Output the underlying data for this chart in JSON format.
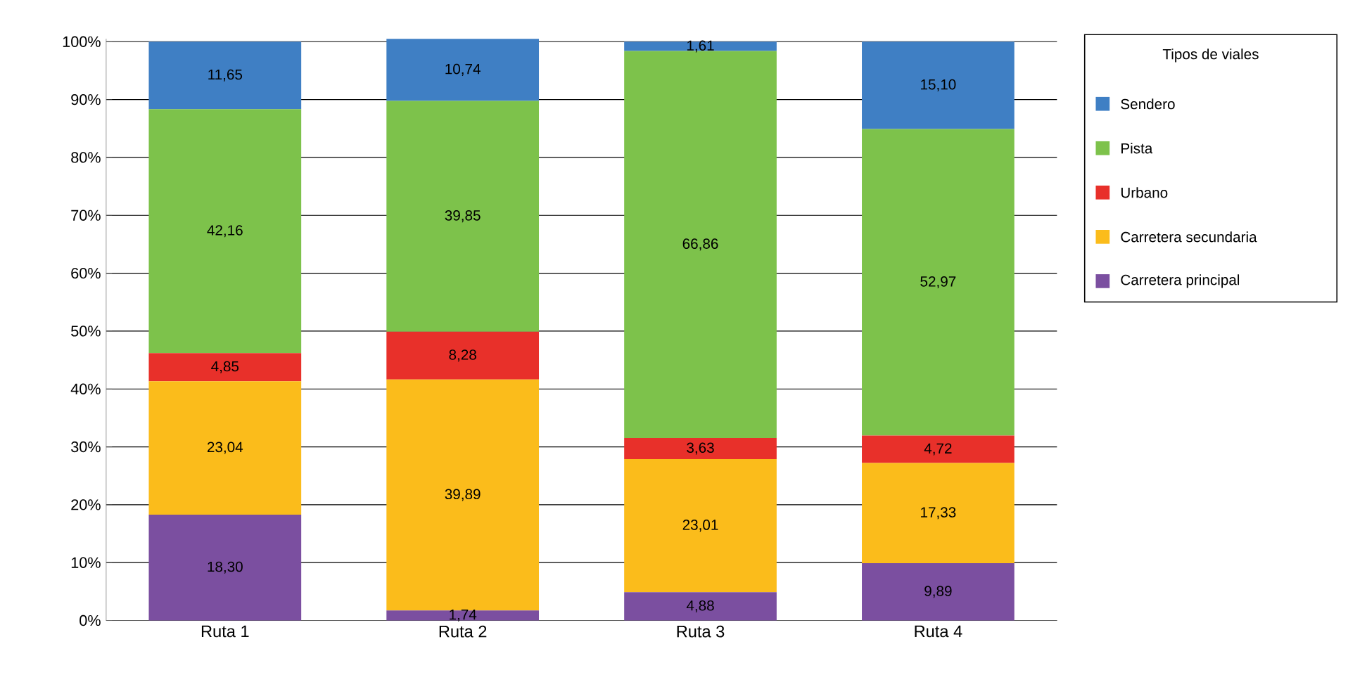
{
  "chart_data": {
    "type": "bar",
    "stacked": true,
    "categories": [
      "Ruta 1",
      "Ruta 2",
      "Ruta 3",
      "Ruta 4"
    ],
    "legend_title": "Tipos de viales",
    "legend": "right",
    "grid": "y",
    "ylim": [
      0,
      100.5
    ],
    "yticks": [
      {
        "value": 0,
        "label": "0%"
      },
      {
        "value": 10,
        "label": "10%"
      },
      {
        "value": 20,
        "label": "20%"
      },
      {
        "value": 30,
        "label": "30%"
      },
      {
        "value": 40,
        "label": "40%"
      },
      {
        "value": 50,
        "label": "50%"
      },
      {
        "value": 60,
        "label": "60%"
      },
      {
        "value": 70,
        "label": "70%"
      },
      {
        "value": 80,
        "label": "80%"
      },
      {
        "value": 90,
        "label": "90%"
      },
      {
        "value": 100,
        "label": "100%"
      }
    ],
    "series": [
      {
        "name": "Carretera principal",
        "color": "#7b4fa0",
        "values": [
          18.3,
          1.74,
          4.88,
          9.89
        ],
        "value_labels": [
          "18,30",
          "1,74",
          "4,88",
          "9,89"
        ]
      },
      {
        "name": "Carretera secundaria",
        "color": "#fbbc1b",
        "values": [
          23.04,
          39.89,
          23.01,
          17.33
        ],
        "value_labels": [
          "23,04",
          "39,89",
          "23,01",
          "17,33"
        ]
      },
      {
        "name": "Urbano",
        "color": "#e8302a",
        "values": [
          4.85,
          8.28,
          3.63,
          4.72
        ],
        "value_labels": [
          "4,85",
          "8,28",
          "3,63",
          "4,72"
        ]
      },
      {
        "name": "Pista",
        "color": "#7dc24b",
        "values": [
          42.16,
          39.85,
          66.86,
          52.97
        ],
        "value_labels": [
          "42,16",
          "39,85",
          "66,86",
          "52,97"
        ]
      },
      {
        "name": "Sendero",
        "color": "#3f7fc4",
        "values": [
          11.65,
          10.74,
          1.61,
          15.1
        ],
        "value_labels": [
          "11,65",
          "10,74",
          "1,61",
          "15,10"
        ]
      }
    ]
  }
}
